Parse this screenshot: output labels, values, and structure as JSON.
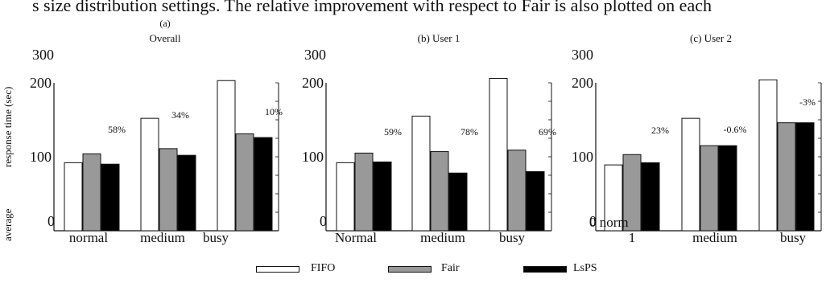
{
  "caption": "s size distribution settings. The relative improvement with respect to Fair is also plotted on each",
  "y_axis_label_parts": [
    "average",
    "response time (sec)"
  ],
  "legend": [
    {
      "name": "FIFO",
      "color": "#ffffff"
    },
    {
      "name": "Fair",
      "color": "#999999"
    },
    {
      "name": "LsPS",
      "color": "#000000"
    }
  ],
  "chart_data": [
    {
      "type": "bar",
      "title_line1": "(a)",
      "title": "Overall",
      "ylim": [
        0,
        300
      ],
      "y_ticks": [
        "0",
        "100",
        "200",
        "300"
      ],
      "categories": [
        "normal",
        "medium",
        "busy"
      ],
      "series": [
        {
          "name": "FIFO",
          "values": [
            92,
            152,
            203
          ]
        },
        {
          "name": "Fair",
          "values": [
            104,
            111,
            131
          ]
        },
        {
          "name": "LsPS",
          "values": [
            90,
            102,
            126
          ]
        }
      ],
      "annotations": [
        "58%",
        "34%",
        "10%"
      ]
    },
    {
      "type": "bar",
      "title": "(b) User 1",
      "ylim": [
        0,
        300
      ],
      "y_ticks": [
        "0",
        "100",
        "200",
        "300"
      ],
      "categories": [
        "Normal",
        "medium",
        "busy"
      ],
      "series": [
        {
          "name": "FIFO",
          "values": [
            92,
            155,
            206
          ]
        },
        {
          "name": "Fair",
          "values": [
            105,
            107,
            109
          ]
        },
        {
          "name": "LsPS",
          "values": [
            93,
            78,
            80
          ]
        }
      ],
      "annotations": [
        "59%",
        "78%",
        "69%"
      ]
    },
    {
      "type": "bar",
      "title": "(c) User 2",
      "ylim": [
        0,
        300
      ],
      "y_ticks": [
        "0",
        "100",
        "200",
        "300"
      ],
      "categories": [
        "1",
        "medium",
        "busy"
      ],
      "extra_labels": [
        "0 norm"
      ],
      "series": [
        {
          "name": "FIFO",
          "values": [
            89,
            152,
            204
          ]
        },
        {
          "name": "Fair",
          "values": [
            103,
            115,
            146
          ]
        },
        {
          "name": "LsPS",
          "values": [
            92,
            115,
            146
          ]
        }
      ],
      "annotations": [
        "23%",
        "-0.6%",
        "-3%"
      ]
    }
  ]
}
